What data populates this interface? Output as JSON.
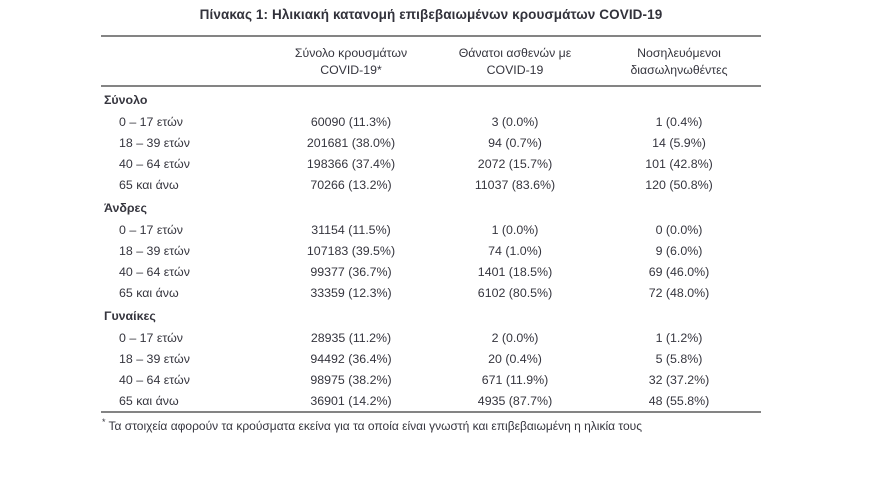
{
  "page": {
    "title": "Πίνακας 1: Ηλικιακή κατανομή επιβεβαιωμένων κρουσμάτων COVID-19"
  },
  "table": {
    "columns": [
      {
        "line1": "Σύνολο κρουσμάτων",
        "line2": "COVID-19*"
      },
      {
        "line1": "Θάνατοι ασθενών με",
        "line2": "COVID-19"
      },
      {
        "line1": "Νοσηλευόμενοι",
        "line2": "διασωληνωθέντες"
      }
    ],
    "sections": [
      {
        "label": "Σύνολο",
        "rows": [
          {
            "label": "0 – 17 ετών",
            "cases": "60090 (11.3%)",
            "deaths": "3 (0.0%)",
            "intubated": "1 (0.4%)"
          },
          {
            "label": "18 – 39 ετών",
            "cases": "201681 (38.0%)",
            "deaths": "94 (0.7%)",
            "intubated": "14 (5.9%)"
          },
          {
            "label": "40 – 64 ετών",
            "cases": "198366 (37.4%)",
            "deaths": "2072 (15.7%)",
            "intubated": "101 (42.8%)"
          },
          {
            "label": "65 και άνω",
            "cases": "70266 (13.2%)",
            "deaths": "11037 (83.6%)",
            "intubated": "120 (50.8%)"
          }
        ]
      },
      {
        "label": "Άνδρες",
        "rows": [
          {
            "label": "0 – 17 ετών",
            "cases": "31154 (11.5%)",
            "deaths": "1 (0.0%)",
            "intubated": "0 (0.0%)"
          },
          {
            "label": "18 – 39 ετών",
            "cases": "107183 (39.5%)",
            "deaths": "74 (1.0%)",
            "intubated": "9 (6.0%)"
          },
          {
            "label": "40 – 64 ετών",
            "cases": "99377 (36.7%)",
            "deaths": "1401 (18.5%)",
            "intubated": "69 (46.0%)"
          },
          {
            "label": "65 και άνω",
            "cases": "33359 (12.3%)",
            "deaths": "6102 (80.5%)",
            "intubated": "72 (48.0%)"
          }
        ]
      },
      {
        "label": "Γυναίκες",
        "rows": [
          {
            "label": "0 – 17 ετών",
            "cases": "28935 (11.2%)",
            "deaths": "2 (0.0%)",
            "intubated": "1 (1.2%)"
          },
          {
            "label": "18 – 39 ετών",
            "cases": "94492 (36.4%)",
            "deaths": "20 (0.4%)",
            "intubated": "5 (5.8%)"
          },
          {
            "label": "40 – 64 ετών",
            "cases": "98975 (38.2%)",
            "deaths": "671 (11.9%)",
            "intubated": "32 (37.2%)"
          },
          {
            "label": "65 και άνω",
            "cases": "36901 (14.2%)",
            "deaths": "4935 (87.7%)",
            "intubated": "48 (55.8%)"
          }
        ]
      }
    ],
    "footnote_marker": "*",
    "footnote": "Τα στοιχεία αφορούν τα κρούσματα εκείνα για τα οποία είναι γνωστή και επιβεβαιωμένη η ηλικία τους"
  },
  "colors": {
    "text": "#35353e",
    "rule": "#848484",
    "background": "#ffffff"
  }
}
